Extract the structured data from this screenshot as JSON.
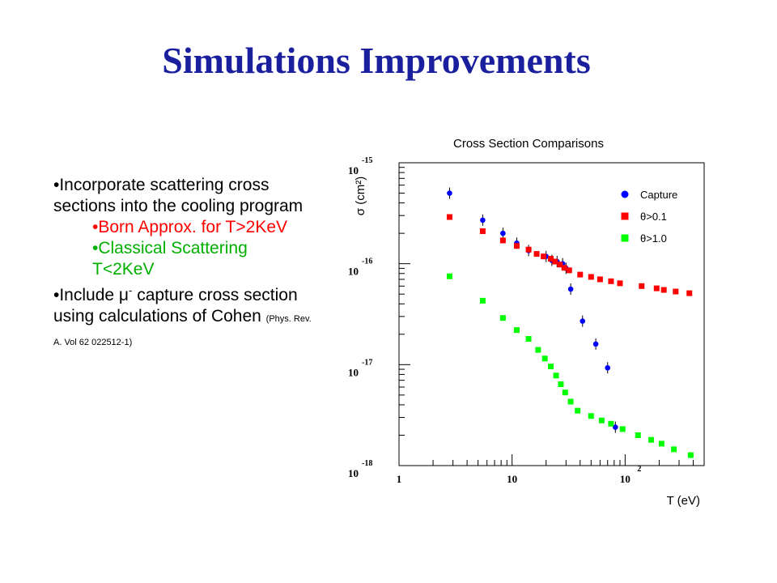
{
  "slide": {
    "title": "Simulations Improvements",
    "bullets": {
      "b1": "•Incorporate scattering cross sections into the cooling program",
      "b1_sub1": "•Born Approx. for T>2KeV",
      "b1_sub2": "•Classical Scattering T<2KeV",
      "b2_pre": "•Include ",
      "b2_mu": "μ",
      "b2_sup": "-",
      "b2_post": " capture cross section using calculations of Cohen ",
      "b2_ref": "(Phys. Rev. A. Vol 62 022512-1)"
    },
    "colors": {
      "title": "#1a1f9e",
      "sub1": "#ff0000",
      "sub2": "#00b000"
    }
  },
  "chart_data": {
    "type": "scatter",
    "title": "Cross Section Comparisons",
    "xlabel": "T (eV)",
    "ylabel": "σ (cm²)",
    "xscale": "log",
    "yscale": "log",
    "xlim": [
      1,
      500
    ],
    "ylim": [
      1e-18,
      1e-15
    ],
    "x_tick_labels": [
      {
        "value": 1,
        "base": "1",
        "exp": ""
      },
      {
        "value": 10,
        "base": "10",
        "exp": ""
      },
      {
        "value": 100,
        "base": "10",
        "exp": "2"
      }
    ],
    "y_tick_labels": [
      {
        "value": 1e-15,
        "base": "10",
        "exp": "-15"
      },
      {
        "value": 1e-16,
        "base": "10",
        "exp": "-16"
      },
      {
        "value": 1e-17,
        "base": "10",
        "exp": "-17"
      },
      {
        "value": 1e-18,
        "base": "10",
        "exp": "-18"
      }
    ],
    "legend_position": "top-right",
    "series": [
      {
        "name": "Capture",
        "marker": "circle",
        "color": "#0000ff",
        "points": [
          [
            2.8,
            5e-16
          ],
          [
            5.5,
            2.7e-16
          ],
          [
            8.3,
            2e-16
          ],
          [
            11,
            1.6e-16
          ],
          [
            14,
            1.35e-16
          ],
          [
            20,
            1.18e-16
          ],
          [
            22.5,
            1.08e-16
          ],
          [
            25,
            1.05e-16
          ],
          [
            28,
            1e-16
          ],
          [
            30,
            9e-17
          ],
          [
            33,
            5.6e-17
          ],
          [
            42,
            2.7e-17
          ],
          [
            55,
            1.6e-17
          ],
          [
            70,
            9.3e-18
          ],
          [
            82,
            2.4e-18
          ]
        ],
        "error_bars": true
      },
      {
        "name": "θ>0.1",
        "marker": "square",
        "color": "#ff0000",
        "points": [
          [
            2.8,
            2.9e-16
          ],
          [
            5.5,
            2.1e-16
          ],
          [
            8.3,
            1.7e-16
          ],
          [
            11,
            1.5e-16
          ],
          [
            14,
            1.38e-16
          ],
          [
            16.5,
            1.25e-16
          ],
          [
            19,
            1.18e-16
          ],
          [
            22,
            1.12e-16
          ],
          [
            24,
            1.05e-16
          ],
          [
            26.5,
            9.8e-17
          ],
          [
            29,
            9.1e-17
          ],
          [
            32,
            8.6e-17
          ],
          [
            40,
            7.8e-17
          ],
          [
            50,
            7.4e-17
          ],
          [
            60,
            7e-17
          ],
          [
            75,
            6.7e-17
          ],
          [
            90,
            6.4e-17
          ],
          [
            140,
            6e-17
          ],
          [
            190,
            5.7e-17
          ],
          [
            220,
            5.5e-17
          ],
          [
            280,
            5.3e-17
          ],
          [
            370,
            5.1e-17
          ]
        ]
      },
      {
        "name": "θ>1.0",
        "marker": "square",
        "color": "#00ff00",
        "points": [
          [
            2.8,
            7.5e-17
          ],
          [
            5.5,
            4.3e-17
          ],
          [
            8.3,
            2.9e-17
          ],
          [
            11,
            2.2e-17
          ],
          [
            14,
            1.8e-17
          ],
          [
            17,
            1.4e-17
          ],
          [
            19.5,
            1.15e-17
          ],
          [
            22,
            9.6e-18
          ],
          [
            24.5,
            7.8e-18
          ],
          [
            27,
            6.4e-18
          ],
          [
            29.5,
            5.3e-18
          ],
          [
            33,
            4.3e-18
          ],
          [
            38,
            3.5e-18
          ],
          [
            50,
            3.1e-18
          ],
          [
            62,
            2.8e-18
          ],
          [
            75,
            2.6e-18
          ],
          [
            95,
            2.3e-18
          ],
          [
            130,
            2e-18
          ],
          [
            170,
            1.8e-18
          ],
          [
            210,
            1.65e-18
          ],
          [
            270,
            1.45e-18
          ],
          [
            380,
            1.27e-18
          ]
        ]
      }
    ]
  }
}
